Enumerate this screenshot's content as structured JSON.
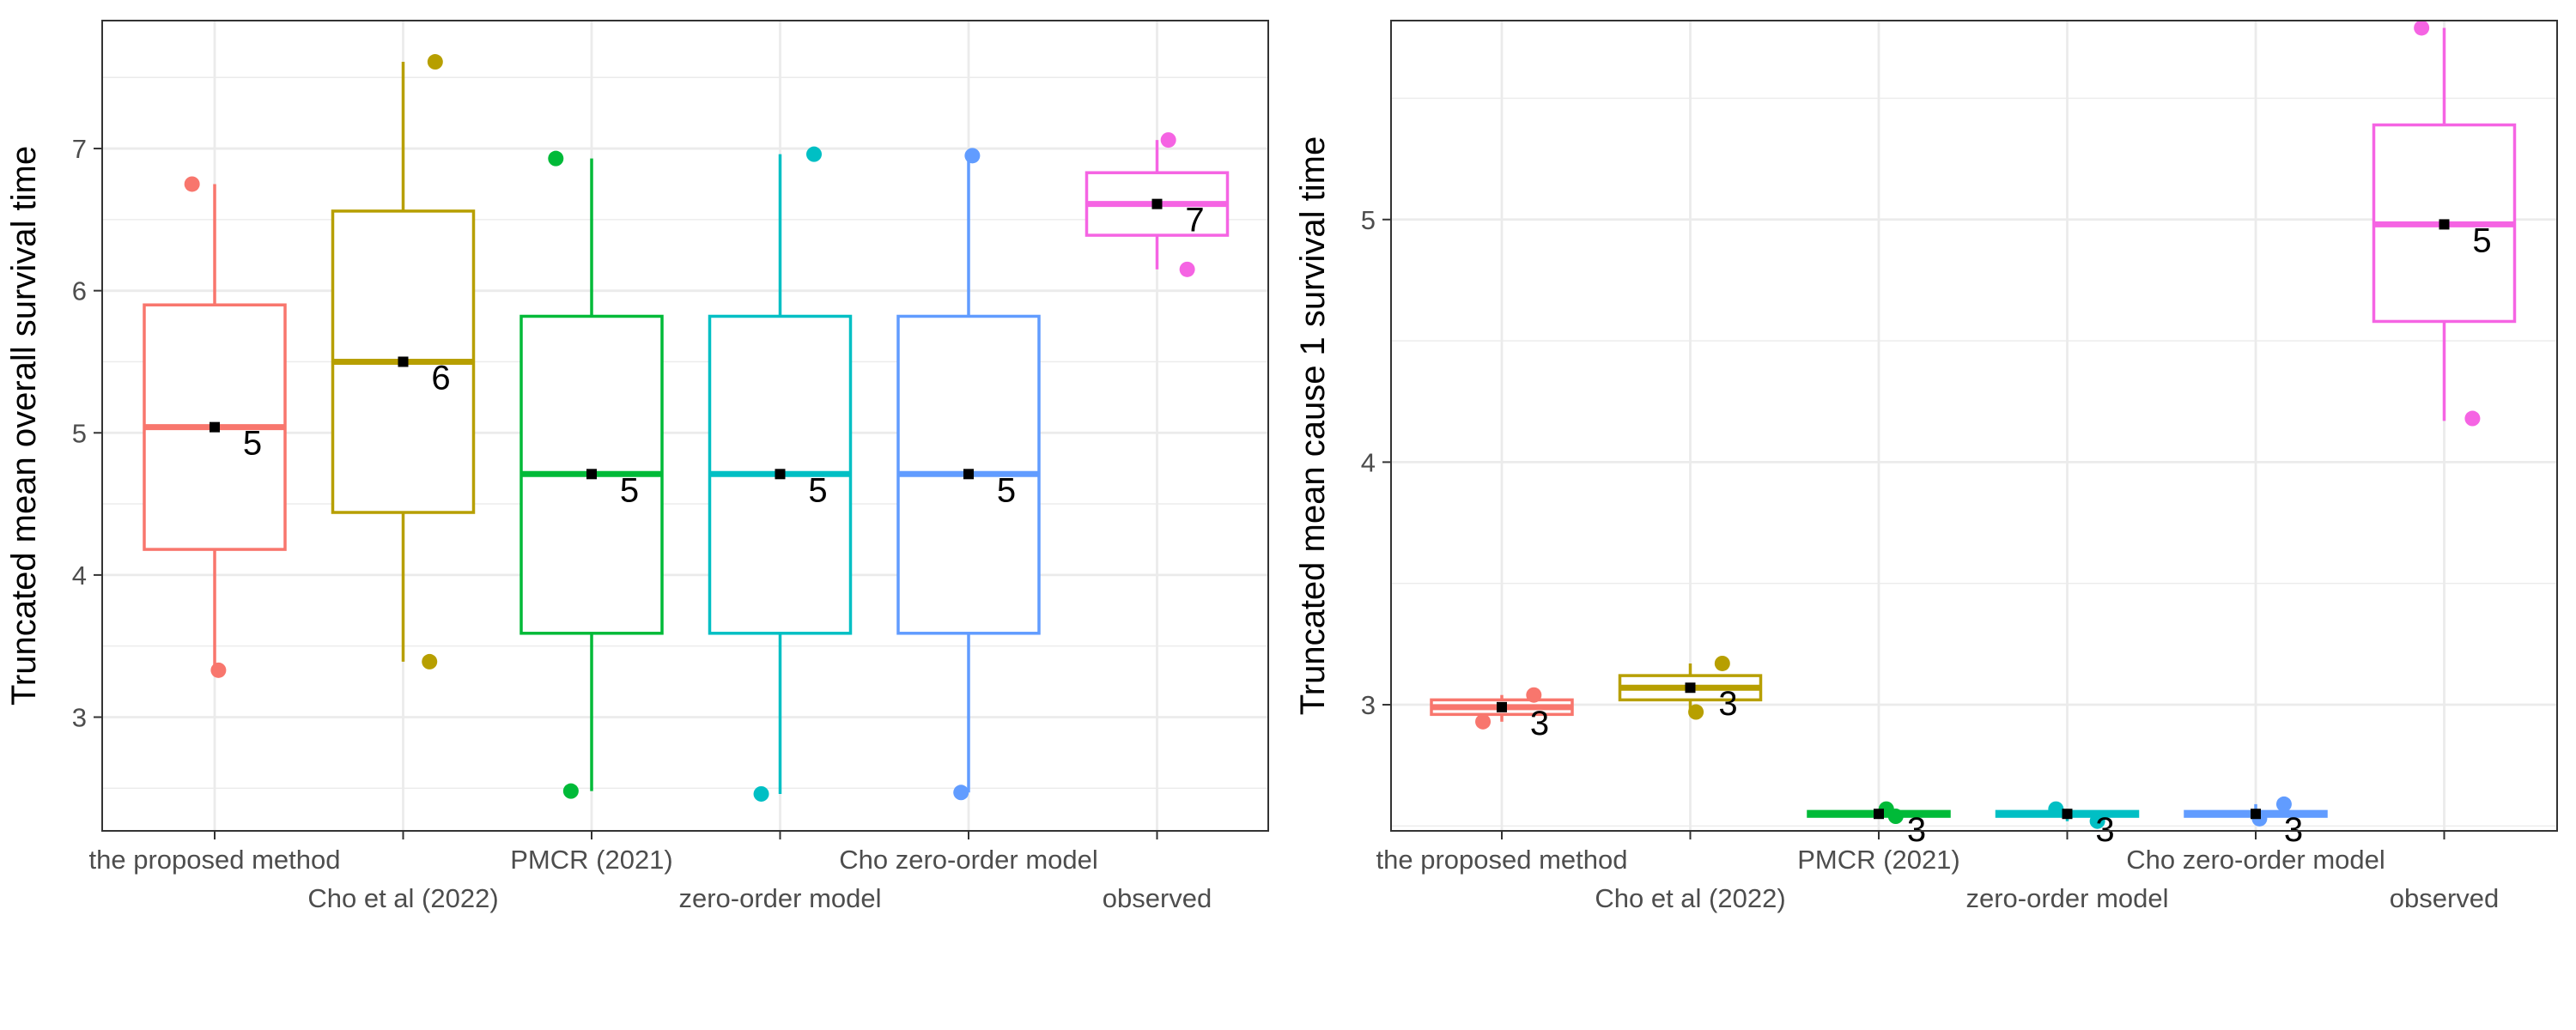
{
  "figure": {
    "background": "#ffffff"
  },
  "chart_data": [
    {
      "type": "boxplot",
      "ylabel": "Truncated mean overall survival time",
      "xlabel": "",
      "ylim": [
        2.2,
        7.9
      ],
      "yticks": [
        3,
        4,
        5,
        6,
        7
      ],
      "grid": true,
      "categories": [
        "the proposed method",
        "Cho et al (2022)",
        "PMCR (2021)",
        "zero-order model",
        "Cho zero-order model",
        "observed"
      ],
      "boxes": [
        {
          "category": "the proposed method",
          "color": "#F8766D",
          "min": 3.33,
          "q1": 4.18,
          "median": 5.04,
          "q3": 5.9,
          "max": 6.75,
          "mean": 5.04,
          "label": "5",
          "points": [
            {
              "x": -0.12,
              "y": 6.75
            },
            {
              "x": 0.02,
              "y": 3.33
            }
          ]
        },
        {
          "category": "Cho et al (2022)",
          "color": "#B79F00",
          "min": 3.39,
          "q1": 4.44,
          "median": 5.5,
          "q3": 6.56,
          "max": 7.61,
          "mean": 5.5,
          "label": "6",
          "points": [
            {
              "x": 0.17,
              "y": 7.61
            },
            {
              "x": 0.14,
              "y": 3.39
            }
          ]
        },
        {
          "category": "PMCR (2021)",
          "color": "#00BA38",
          "min": 2.48,
          "q1": 3.59,
          "median": 4.71,
          "q3": 5.82,
          "max": 6.93,
          "mean": 4.71,
          "label": "5",
          "points": [
            {
              "x": -0.19,
              "y": 6.93
            },
            {
              "x": -0.11,
              "y": 2.48
            }
          ]
        },
        {
          "category": "zero-order model",
          "color": "#00BFC4",
          "min": 2.46,
          "q1": 3.59,
          "median": 4.71,
          "q3": 5.82,
          "max": 6.96,
          "mean": 4.71,
          "label": "5",
          "points": [
            {
              "x": 0.18,
              "y": 6.96
            },
            {
              "x": -0.1,
              "y": 2.46
            }
          ]
        },
        {
          "category": "Cho zero-order model",
          "color": "#619CFF",
          "min": 2.47,
          "q1": 3.59,
          "median": 4.71,
          "q3": 5.82,
          "max": 6.95,
          "mean": 4.71,
          "label": "5",
          "points": [
            {
              "x": 0.02,
              "y": 6.95
            },
            {
              "x": -0.04,
              "y": 2.47
            }
          ]
        },
        {
          "category": "observed",
          "color": "#F564E3",
          "min": 6.15,
          "q1": 6.39,
          "median": 6.61,
          "q3": 6.83,
          "max": 7.06,
          "mean": 6.61,
          "label": "7",
          "points": [
            {
              "x": 0.06,
              "y": 7.06
            },
            {
              "x": 0.16,
              "y": 6.15
            }
          ]
        }
      ]
    },
    {
      "type": "boxplot",
      "ylabel": "Truncated mean cause 1 survival time",
      "xlabel": "",
      "ylim": [
        2.48,
        5.82
      ],
      "yticks": [
        3,
        4,
        5
      ],
      "grid": true,
      "categories": [
        "the proposed method",
        "Cho et al (2022)",
        "PMCR (2021)",
        "zero-order model",
        "Cho zero-order model",
        "observed"
      ],
      "boxes": [
        {
          "category": "the proposed method",
          "color": "#F8766D",
          "min": 2.93,
          "q1": 2.96,
          "median": 2.99,
          "q3": 3.02,
          "max": 3.04,
          "mean": 2.99,
          "label": "3",
          "points": [
            {
              "x": -0.1,
              "y": 2.93
            },
            {
              "x": 0.17,
              "y": 3.04
            }
          ]
        },
        {
          "category": "Cho et al (2022)",
          "color": "#B79F00",
          "min": 2.97,
          "q1": 3.02,
          "median": 3.07,
          "q3": 3.12,
          "max": 3.17,
          "mean": 3.07,
          "label": "3",
          "points": [
            {
              "x": 0.03,
              "y": 2.97
            },
            {
              "x": 0.17,
              "y": 3.17
            }
          ]
        },
        {
          "category": "PMCR (2021)",
          "color": "#00BA38",
          "min": 2.53,
          "q1": 2.54,
          "median": 2.55,
          "q3": 2.56,
          "max": 2.57,
          "mean": 2.55,
          "label": "3",
          "points": [
            {
              "x": 0.04,
              "y": 2.57
            },
            {
              "x": 0.09,
              "y": 2.54
            }
          ]
        },
        {
          "category": "zero-order model",
          "color": "#00BFC4",
          "min": 2.52,
          "q1": 2.54,
          "median": 2.55,
          "q3": 2.56,
          "max": 2.57,
          "mean": 2.55,
          "label": "3",
          "points": [
            {
              "x": -0.06,
              "y": 2.57
            },
            {
              "x": 0.16,
              "y": 2.52
            }
          ]
        },
        {
          "category": "Cho zero-order model",
          "color": "#619CFF",
          "min": 2.53,
          "q1": 2.54,
          "median": 2.55,
          "q3": 2.56,
          "max": 2.59,
          "mean": 2.55,
          "label": "3",
          "points": [
            {
              "x": 0.02,
              "y": 2.53
            },
            {
              "x": 0.15,
              "y": 2.59
            }
          ]
        },
        {
          "category": "observed",
          "color": "#F564E3",
          "min": 4.17,
          "q1": 4.58,
          "median": 4.98,
          "q3": 5.39,
          "max": 5.79,
          "mean": 4.98,
          "label": "5",
          "points": [
            {
              "x": -0.12,
              "y": 5.79
            },
            {
              "x": 0.15,
              "y": 4.18
            }
          ]
        }
      ]
    }
  ]
}
